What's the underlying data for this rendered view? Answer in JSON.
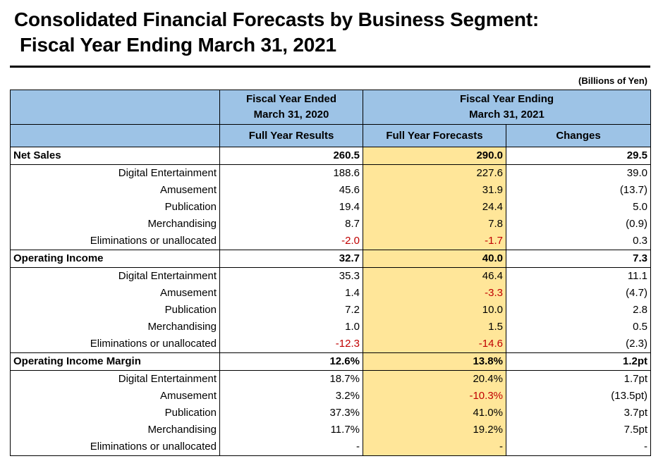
{
  "title": {
    "line1": "Consolidated Financial Forecasts by Business Segment:",
    "line2": "Fiscal Year Ending March 31, 2021"
  },
  "units": "(Billions of Yen)",
  "header": {
    "fy2020_line1": "Fiscal Year Ended",
    "fy2020_line2": "March 31, 2020",
    "fy2021_line1": "Fiscal Year Ending",
    "fy2021_line2": "March 31, 2021",
    "col_results": "Full Year Results",
    "col_forecasts": "Full Year Forecasts",
    "col_changes": "Changes"
  },
  "sections": [
    {
      "label": "Net Sales",
      "results": "260.5",
      "forecasts": "290.0",
      "changes": "29.5",
      "rows": [
        {
          "label": "Digital Entertainment",
          "results": "188.6",
          "forecasts": "227.6",
          "changes": "39.0"
        },
        {
          "label": "Amusement",
          "results": "45.6",
          "forecasts": "31.9",
          "changes": "(13.7)"
        },
        {
          "label": "Publication",
          "results": "19.4",
          "forecasts": "24.4",
          "changes": "5.0"
        },
        {
          "label": "Merchandising",
          "results": "8.7",
          "forecasts": "7.8",
          "changes": "(0.9)"
        },
        {
          "label": "Eliminations or unallocated",
          "results": "-2.0",
          "forecasts": "-1.7",
          "changes": "0.3"
        }
      ]
    },
    {
      "label": "Operating Income",
      "results": "32.7",
      "forecasts": "40.0",
      "changes": "7.3",
      "rows": [
        {
          "label": "Digital Entertainment",
          "results": "35.3",
          "forecasts": "46.4",
          "changes": "11.1"
        },
        {
          "label": "Amusement",
          "results": "1.4",
          "forecasts": "-3.3",
          "changes": "(4.7)"
        },
        {
          "label": "Publication",
          "results": "7.2",
          "forecasts": "10.0",
          "changes": "2.8"
        },
        {
          "label": "Merchandising",
          "results": "1.0",
          "forecasts": "1.5",
          "changes": "0.5"
        },
        {
          "label": "Eliminations or unallocated",
          "results": "-12.3",
          "forecasts": "-14.6",
          "changes": "(2.3)"
        }
      ]
    },
    {
      "label": "Operating Income Margin",
      "results": "12.6%",
      "forecasts": "13.8%",
      "changes": "1.2pt",
      "rows": [
        {
          "label": "Digital Entertainment",
          "results": "18.7%",
          "forecasts": "20.4%",
          "changes": "1.7pt"
        },
        {
          "label": "Amusement",
          "results": "3.2%",
          "forecasts": "-10.3%",
          "changes": "(13.5pt)"
        },
        {
          "label": "Publication",
          "results": "37.3%",
          "forecasts": "41.0%",
          "changes": "3.7pt"
        },
        {
          "label": "Merchandising",
          "results": "11.7%",
          "forecasts": "19.2%",
          "changes": "7.5pt"
        },
        {
          "label": "Eliminations or unallocated",
          "results": "-",
          "forecasts": "-",
          "changes": "-"
        }
      ]
    }
  ],
  "colors": {
    "header_blue": "#9dc3e6",
    "forecast_yellow": "#ffe699",
    "negative_red": "#c00000"
  }
}
